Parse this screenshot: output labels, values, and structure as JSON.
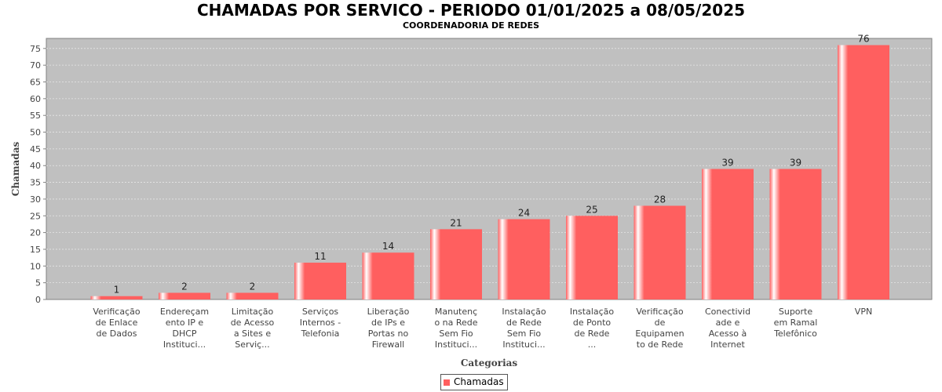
{
  "header": {
    "title": "CHAMADAS POR SERVICO - PERIODO 01/01/2025 a 08/05/2025",
    "subtitle": "COORDENADORIA DE REDES"
  },
  "legend": {
    "label": "Chamadas"
  },
  "colors": {
    "bar": "#ff5f5f",
    "bar_highlight": "#ffffff",
    "plot_bg": "#c0c0c0",
    "grid": "#e6e6e6"
  },
  "chart_data": {
    "type": "bar",
    "title": "CHAMADAS POR SERVICO - PERIODO 01/01/2025 a 08/05/2025",
    "subtitle": "COORDENADORIA DE REDES",
    "xlabel": "Categorias",
    "ylabel": "Chamadas",
    "ylim": [
      0,
      78
    ],
    "yticks": [
      0,
      5,
      10,
      15,
      20,
      25,
      30,
      35,
      40,
      45,
      50,
      55,
      60,
      65,
      70,
      75
    ],
    "grid": true,
    "legend_position": "bottom",
    "categories": [
      [
        "Verificação",
        "de Enlace",
        "de Dados"
      ],
      [
        "Endereçam",
        "ento IP e",
        "DHCP",
        "Instituci..."
      ],
      [
        "Limitação",
        "de Acesso",
        "a Sites e",
        "Serviç..."
      ],
      [
        "Serviços",
        "Internos -",
        "Telefonia"
      ],
      [
        "Liberação",
        "de IPs e",
        "Portas no",
        "Firewall"
      ],
      [
        "Manutenç",
        "o na Rede",
        "Sem Fio",
        "Instituci..."
      ],
      [
        "Instalação",
        "de Rede",
        "Sem Fio",
        "Instituci..."
      ],
      [
        "Instalação",
        "de Ponto",
        "de Rede",
        "..."
      ],
      [
        "Verificação",
        "de",
        "Equipamen",
        "to de Rede"
      ],
      [
        "Conectivid",
        "ade e",
        "Acesso à",
        "Internet"
      ],
      [
        "Suporte",
        "em Ramal",
        "Telefônico"
      ],
      [
        "VPN"
      ]
    ],
    "series": [
      {
        "name": "Chamadas",
        "values": [
          1,
          2,
          2,
          11,
          14,
          21,
          24,
          25,
          28,
          39,
          39,
          76
        ]
      }
    ]
  }
}
